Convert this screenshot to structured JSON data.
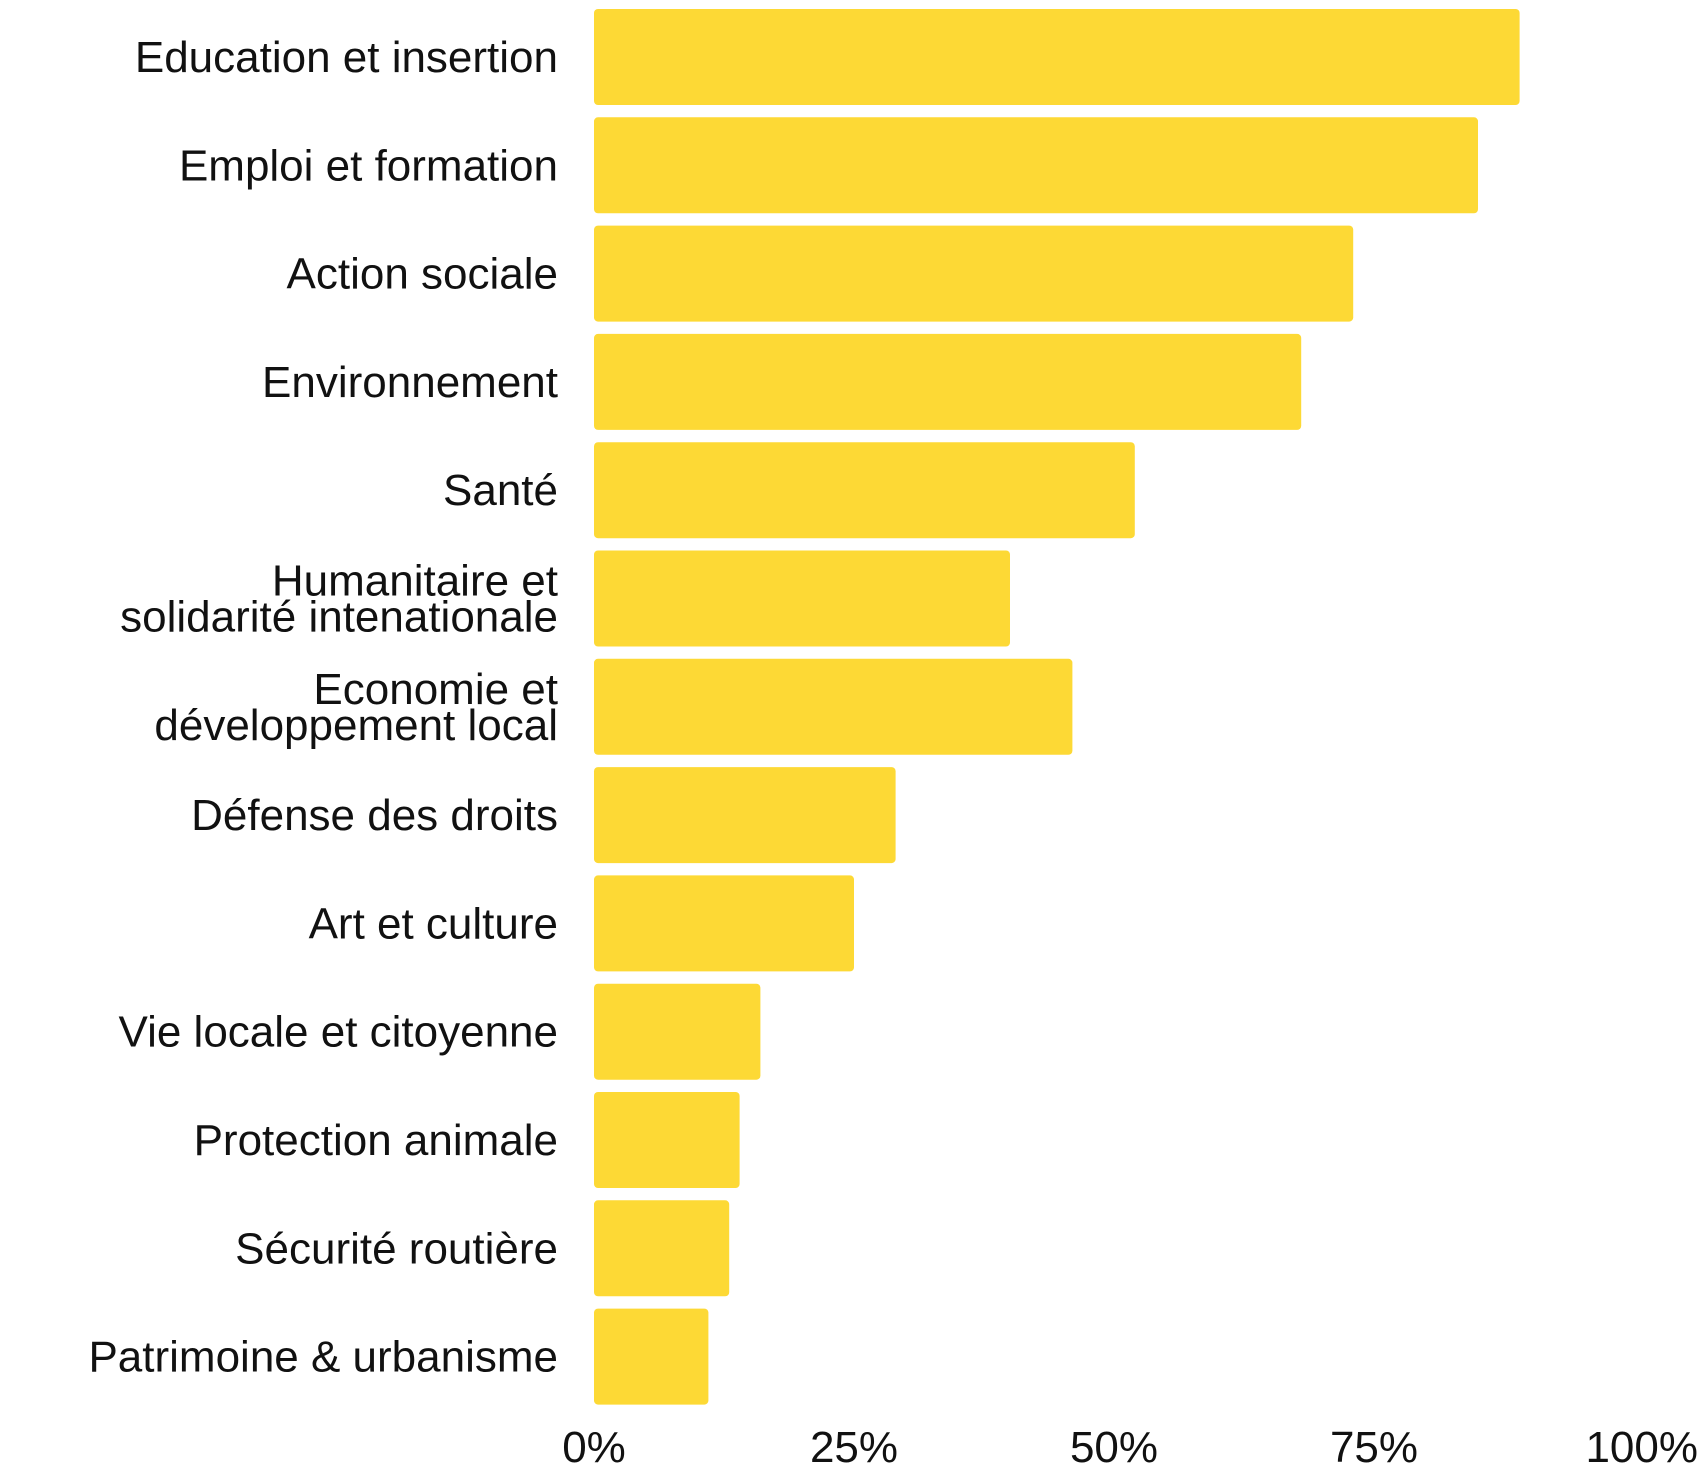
{
  "chart_data": {
    "type": "bar",
    "orientation": "horizontal",
    "title": "",
    "xlabel": "",
    "ylabel": "",
    "categories": [
      [
        "Education et insertion"
      ],
      [
        "Emploi et formation"
      ],
      [
        "Action sociale"
      ],
      [
        "Environnement"
      ],
      [
        "Santé"
      ],
      [
        "Humanitaire et",
        "solidarité intenationale"
      ],
      [
        "Economie et",
        "développement local"
      ],
      [
        "Défense des droits"
      ],
      [
        "Art et culture"
      ],
      [
        "Vie locale et citoyenne"
      ],
      [
        "Protection animale"
      ],
      [
        "Sécurité routière"
      ],
      [
        "Patrimoine & urbanisme"
      ]
    ],
    "values": [
      89,
      85,
      73,
      68,
      52,
      40,
      46,
      29,
      25,
      16,
      14,
      13,
      11
    ],
    "unit": "%",
    "xlim": [
      0,
      100
    ],
    "x_ticks": [
      0,
      25,
      50,
      75,
      100
    ],
    "x_tick_labels": [
      "0%",
      "25%",
      "50%",
      "75%",
      "100%"
    ],
    "grid": false,
    "legend": "none",
    "bar_color": "#FDD935",
    "text_color": "#111111"
  }
}
